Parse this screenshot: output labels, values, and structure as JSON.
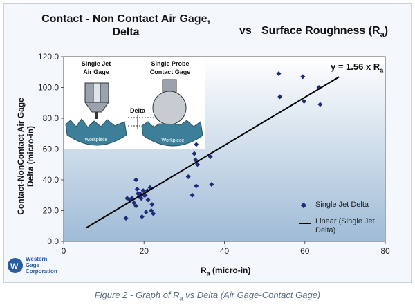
{
  "title": {
    "left_line1": "Contact - Non Contact Air Gage,",
    "left_line2": "Delta",
    "vs": "vs",
    "right": "Surface Roughness (R",
    "right_sub": "a",
    "right_close": ")"
  },
  "chart_data": {
    "type": "scatter",
    "xlabel_main": "R",
    "xlabel_sub": "a",
    "xlabel_rest": " (micro-in)",
    "ylabel_line1": "Contact-NonContact Air Gage",
    "ylabel_line2": "Delta (micro-in)",
    "xlim": [
      0,
      80
    ],
    "ylim": [
      0,
      120
    ],
    "x_ticks": [
      "0",
      "20",
      "40",
      "60",
      "80"
    ],
    "y_ticks": [
      "0.0",
      "20.0",
      "40.0",
      "60.0",
      "80.0",
      "100.0",
      "120.0"
    ],
    "series": [
      {
        "name": "Single Jet Delta",
        "marker": "diamond",
        "color": "#1f2a7a",
        "points": [
          [
            15.5,
            15
          ],
          [
            15.8,
            28
          ],
          [
            16.5,
            27
          ],
          [
            17.0,
            28
          ],
          [
            17.5,
            25
          ],
          [
            18.0,
            23
          ],
          [
            18.0,
            40
          ],
          [
            18.3,
            34
          ],
          [
            18.5,
            31
          ],
          [
            18.8,
            29
          ],
          [
            19.0,
            31
          ],
          [
            19.3,
            28
          ],
          [
            19.5,
            16
          ],
          [
            19.8,
            33
          ],
          [
            20.0,
            30
          ],
          [
            20.3,
            30
          ],
          [
            20.5,
            19
          ],
          [
            20.8,
            33
          ],
          [
            21.0,
            27
          ],
          [
            21.5,
            35
          ],
          [
            21.8,
            20
          ],
          [
            22.0,
            24
          ],
          [
            22.3,
            18
          ],
          [
            31.0,
            42
          ],
          [
            32.0,
            30
          ],
          [
            32.5,
            57
          ],
          [
            32.8,
            53
          ],
          [
            33.0,
            63
          ],
          [
            33.3,
            50
          ],
          [
            33.0,
            36
          ],
          [
            36.5,
            55
          ],
          [
            36.8,
            37
          ],
          [
            53.5,
            109
          ],
          [
            53.8,
            94
          ],
          [
            59.5,
            107
          ],
          [
            59.8,
            91
          ],
          [
            63.5,
            100
          ],
          [
            63.8,
            89
          ]
        ]
      }
    ],
    "trendline": {
      "name_line1": "Linear (Single Jet",
      "name_line2": "Delta)",
      "slope": 1.56,
      "x_range": [
        5.5,
        68.5
      ],
      "color": "#000000"
    },
    "equation": {
      "prefix": "y = 1.56 x R",
      "sub": "a"
    },
    "legend_placement": "lower-right"
  },
  "inset": {
    "left_label_line1": "Single Jet",
    "left_label_line2": "Air Gage",
    "right_label_line1": "Single Probe",
    "right_label_line2": "Contact Gage",
    "delta_label": "Delta",
    "workpiece_label": "Workpiece"
  },
  "logo": {
    "line1": "Western",
    "line2": "Gage",
    "line3": "Corporation"
  },
  "caption": {
    "prefix": "Figure 2 - Graph of R",
    "sub": "a",
    "suffix": " vs Delta (Air Gage-Contact Gage)"
  },
  "colors": {
    "plot_top": "#ffffff",
    "plot_bottom": "#9fbbd6",
    "marker": "#1f2a7a",
    "caption": "#5b6b80"
  }
}
